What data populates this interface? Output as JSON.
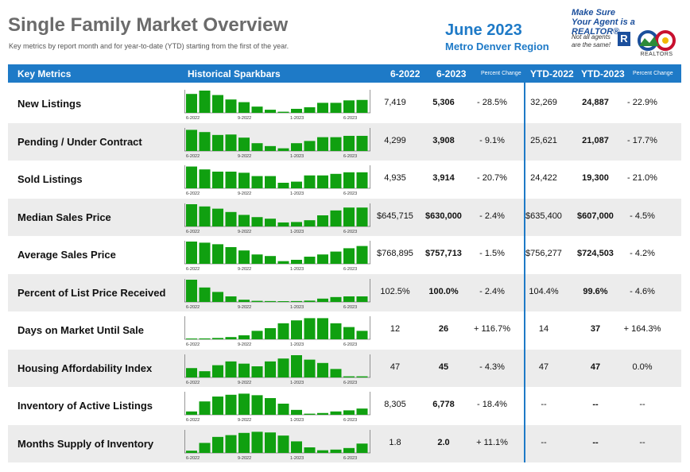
{
  "header": {
    "title": "Single Family Market Overview",
    "subtitle": "Key metrics by report month and for year-to-date (YTD) starting from the first of the year.",
    "month": "June 2023",
    "region": "Metro Denver Region",
    "realtor_line1": "Make Sure",
    "realtor_line2": "Your Agent is a REALTOR®",
    "realtor_note1": "Not all agents",
    "realtor_note2": "are the same!",
    "realtor_logo_letter": "R",
    "realtor_org": "REALTORS"
  },
  "columns": {
    "key_metrics": "Key Metrics",
    "sparkbars": "Historical Sparkbars",
    "m_prev": "6-2022",
    "m_curr": "6-2023",
    "pct": "Percent Change",
    "ytd_prev": "YTD-2022",
    "ytd_curr": "YTD-2023",
    "ytd_pct": "Percent Change"
  },
  "spark_axis": [
    "6-2022",
    "9-2022",
    "1-2023",
    "6-2023"
  ],
  "colors": {
    "accent": "#1e7ac7",
    "bar": "#10a010",
    "shade": "#ececec"
  },
  "rows": [
    {
      "label": "New Listings",
      "m_prev": "7,419",
      "m_curr": "5,306",
      "pct": "- 28.5%",
      "ytd_prev": "32,269",
      "ytd_curr": "24,887",
      "ytd_pct": "- 22.9%",
      "bars": [
        0.85,
        1.0,
        0.8,
        0.6,
        0.48,
        0.28,
        0.14,
        0.05,
        0.18,
        0.25,
        0.45,
        0.45,
        0.56,
        0.58
      ]
    },
    {
      "label": "Pending / Under Contract",
      "m_prev": "4,299",
      "m_curr": "3,908",
      "pct": "- 9.1%",
      "ytd_prev": "25,621",
      "ytd_curr": "21,087",
      "ytd_pct": "- 17.7%",
      "bars": [
        0.95,
        0.85,
        0.72,
        0.74,
        0.6,
        0.35,
        0.22,
        0.12,
        0.35,
        0.45,
        0.62,
        0.62,
        0.68,
        0.68
      ]
    },
    {
      "label": "Sold Listings",
      "m_prev": "4,935",
      "m_curr": "3,914",
      "pct": "- 20.7%",
      "ytd_prev": "24,422",
      "ytd_curr": "19,300",
      "ytd_pct": "- 21.0%",
      "bars": [
        0.98,
        0.85,
        0.75,
        0.75,
        0.7,
        0.55,
        0.55,
        0.25,
        0.3,
        0.58,
        0.58,
        0.65,
        0.72,
        0.72
      ]
    },
    {
      "label": "Median Sales Price",
      "m_prev": "$645,715",
      "m_curr": "$630,000",
      "pct": "- 2.4%",
      "ytd_prev": "$635,400",
      "ytd_curr": "$607,000",
      "ytd_pct": "- 4.5%",
      "bars": [
        1.0,
        0.9,
        0.8,
        0.65,
        0.52,
        0.42,
        0.35,
        0.18,
        0.2,
        0.28,
        0.5,
        0.72,
        0.85,
        0.85
      ]
    },
    {
      "label": "Average Sales Price",
      "m_prev": "$768,895",
      "m_curr": "$757,713",
      "pct": "- 1.5%",
      "ytd_prev": "$756,277",
      "ytd_curr": "$724,503",
      "ytd_pct": "- 4.2%",
      "bars": [
        1.0,
        0.95,
        0.88,
        0.75,
        0.6,
        0.42,
        0.35,
        0.12,
        0.18,
        0.32,
        0.42,
        0.55,
        0.7,
        0.8
      ]
    },
    {
      "label": "Percent of List Price Received",
      "m_prev": "102.5%",
      "m_curr": "100.0%",
      "pct": "- 2.4%",
      "ytd_prev": "104.4%",
      "ytd_curr": "99.6%",
      "ytd_pct": "- 4.6%",
      "bars": [
        1.0,
        0.65,
        0.45,
        0.25,
        0.1,
        0.05,
        0.04,
        0.03,
        0.04,
        0.06,
        0.15,
        0.22,
        0.25,
        0.25
      ]
    },
    {
      "label": "Days on Market Until Sale",
      "m_prev": "12",
      "m_curr": "26",
      "pct": "+ 116.7%",
      "ytd_prev": "14",
      "ytd_curr": "37",
      "ytd_pct": "+ 164.3%",
      "bars": [
        0.02,
        0.04,
        0.06,
        0.1,
        0.18,
        0.38,
        0.5,
        0.72,
        0.85,
        0.95,
        0.95,
        0.72,
        0.55,
        0.38
      ]
    },
    {
      "label": "Housing Affordability Index",
      "m_prev": "47",
      "m_curr": "45",
      "pct": "- 4.3%",
      "ytd_prev": "47",
      "ytd_curr": "47",
      "ytd_pct": "0.0%",
      "bars": [
        0.42,
        0.28,
        0.55,
        0.72,
        0.62,
        0.5,
        0.72,
        0.85,
        1.0,
        0.8,
        0.65,
        0.38,
        0.05,
        0.05
      ]
    },
    {
      "label": "Inventory of Active Listings",
      "m_prev": "8,305",
      "m_curr": "6,778",
      "pct": "- 18.4%",
      "ytd_prev": "--",
      "ytd_curr": "--",
      "ytd_pct": "--",
      "bars": [
        0.15,
        0.6,
        0.82,
        0.9,
        0.95,
        0.88,
        0.75,
        0.5,
        0.22,
        0.05,
        0.08,
        0.15,
        0.2,
        0.28
      ]
    },
    {
      "label": "Months Supply of Inventory",
      "m_prev": "1.8",
      "m_curr": "2.0",
      "pct": "+ 11.1%",
      "ytd_prev": "--",
      "ytd_curr": "--",
      "ytd_pct": "--",
      "bars": [
        0.1,
        0.45,
        0.72,
        0.8,
        0.9,
        0.95,
        0.92,
        0.78,
        0.52,
        0.25,
        0.12,
        0.15,
        0.22,
        0.42
      ]
    }
  ]
}
